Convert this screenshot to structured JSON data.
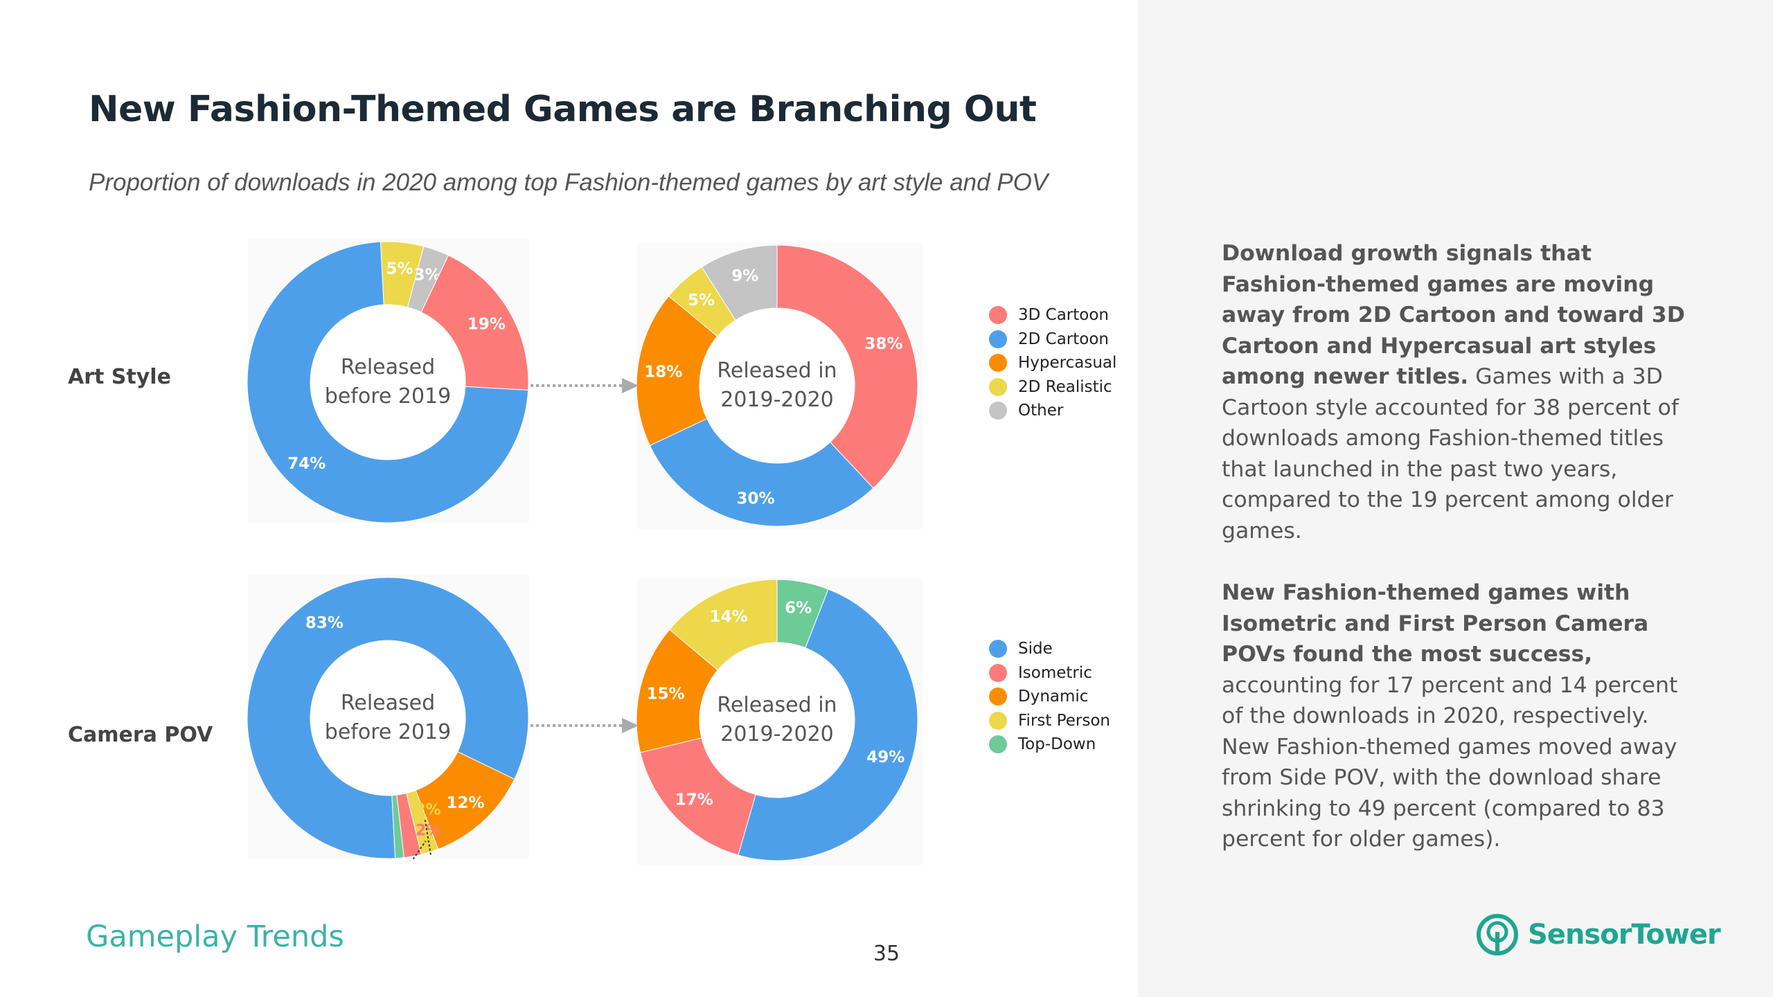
{
  "header": {
    "title": "New Fashion-Themed Games are Branching Out",
    "subtitle": "Proportion of downloads in 2020 among top Fashion-themed games by art style and POV"
  },
  "rows": {
    "art_style": "Art Style",
    "camera_pov": "Camera POV"
  },
  "legends": {
    "art_style": [
      {
        "label": "3D Cartoon",
        "color": "#fc7b79"
      },
      {
        "label": "2D Cartoon",
        "color": "#4e9fea"
      },
      {
        "label": "Hypercasual",
        "color": "#fb8c00"
      },
      {
        "label": "2D Realistic",
        "color": "#ecd84a"
      },
      {
        "label": "Other",
        "color": "#c4c4c4"
      }
    ],
    "camera_pov": [
      {
        "label": "Side",
        "color": "#4e9fea"
      },
      {
        "label": "Isometric",
        "color": "#fc7b79"
      },
      {
        "label": "Dynamic",
        "color": "#fb8c00"
      },
      {
        "label": "First Person",
        "color": "#ecd84a"
      },
      {
        "label": "Top-Down",
        "color": "#6dcb98"
      }
    ]
  },
  "chart_data": [
    {
      "type": "pie",
      "group": "Art Style",
      "center_label": [
        "Released",
        "before 2019"
      ],
      "slices": [
        {
          "label": "2D Realistic",
          "value": 5,
          "data_label": "5%",
          "color": "#ecd84a"
        },
        {
          "label": "Other",
          "value": 3,
          "data_label": "3%",
          "color": "#c4c4c4"
        },
        {
          "label": "3D Cartoon",
          "value": 19,
          "data_label": "19%",
          "color": "#fc7b79"
        },
        {
          "label": "2D Cartoon",
          "value": 74,
          "data_label": "74%",
          "color": "#4e9fea"
        }
      ]
    },
    {
      "type": "pie",
      "group": "Art Style",
      "center_label": [
        "Released in",
        "2019-2020"
      ],
      "slices": [
        {
          "label": "3D Cartoon",
          "value": 38,
          "data_label": "38%",
          "color": "#fc7b79"
        },
        {
          "label": "2D Cartoon",
          "value": 30,
          "data_label": "30%",
          "color": "#4e9fea"
        },
        {
          "label": "Hypercasual",
          "value": 18,
          "data_label": "18%",
          "color": "#fb8c00"
        },
        {
          "label": "2D Realistic",
          "value": 5,
          "data_label": "5%",
          "color": "#ecd84a"
        },
        {
          "label": "Other",
          "value": 9,
          "data_label": "9%",
          "color": "#c4c4c4"
        }
      ]
    },
    {
      "type": "pie",
      "group": "Camera POV",
      "center_label": [
        "Released",
        "before 2019"
      ],
      "slices": [
        {
          "label": "Side",
          "value": 83,
          "data_label": "83%",
          "color": "#4e9fea"
        },
        {
          "label": "Dynamic",
          "value": 12,
          "data_label": "12%",
          "color": "#fb8c00"
        },
        {
          "label": "First Person",
          "value": 2,
          "data_label": "2%",
          "color": "#ecd84a"
        },
        {
          "label": "Isometric",
          "value": 2,
          "data_label": "2%",
          "color": "#fc7b79"
        },
        {
          "label": "Top-Down",
          "value": 1,
          "data_label": "",
          "color": "#6dcb98"
        }
      ]
    },
    {
      "type": "pie",
      "group": "Camera POV",
      "center_label": [
        "Released in",
        "2019-2020"
      ],
      "slices": [
        {
          "label": "Top-Down",
          "value": 6,
          "data_label": "6%",
          "color": "#6dcb98"
        },
        {
          "label": "Side",
          "value": 49,
          "data_label": "49%",
          "color": "#4e9fea"
        },
        {
          "label": "Isometric",
          "value": 17,
          "data_label": "17%",
          "color": "#fc7b79"
        },
        {
          "label": "Dynamic",
          "value": 15,
          "data_label": "15%",
          "color": "#fb8c00"
        },
        {
          "label": "First Person",
          "value": 14,
          "data_label": "14%",
          "color": "#ecd84a"
        }
      ]
    }
  ],
  "sidebar": {
    "para1_bold": "Download growth signals that Fashion-themed games are moving away from 2D Cartoon and toward 3D Cartoon and Hypercasual art styles among newer titles.",
    "para1_text": " Games with a 3D Cartoon style accounted for 38 percent of downloads among Fashion-themed titles that launched in the past two years, compared to the 19 percent among older games.",
    "para2_bold": "New Fashion-themed games with Isometric and First Person Camera POVs found the most success,",
    "para2_text": " accounting for 17 percent and 14 percent of the downloads in 2020, respectively. New Fashion-themed games moved away from Side POV, with the download share shrinking to 49 percent (compared to 83 percent for older games)."
  },
  "footer": {
    "section": "Gameplay Trends",
    "page": "35",
    "brand": "SensorTower"
  }
}
